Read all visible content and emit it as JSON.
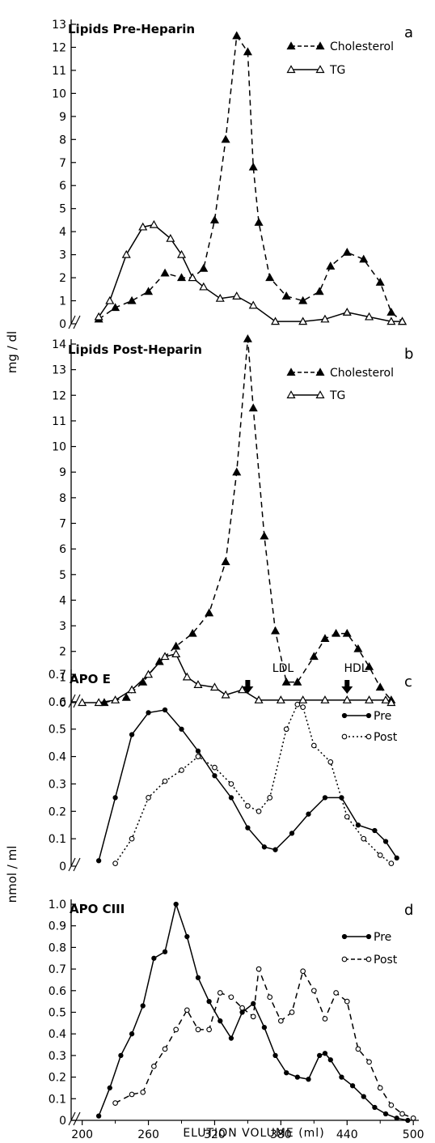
{
  "chart_data": [
    {
      "panel": "a",
      "type": "line",
      "title": "Lipids Pre-Heparin",
      "ylim": [
        0,
        13
      ],
      "yticks": [
        0,
        1,
        2,
        3,
        4,
        5,
        6,
        7,
        8,
        9,
        10,
        11,
        12,
        13
      ],
      "series": [
        {
          "name": "Cholesterol",
          "style": "dashed",
          "marker": "filled-triangle",
          "x": [
            215,
            230,
            245,
            260,
            275,
            290,
            300,
            310,
            320,
            330,
            340,
            350,
            355,
            360,
            370,
            385,
            400,
            415,
            425,
            440,
            455,
            470,
            480,
            490
          ],
          "y": [
            0.2,
            0.7,
            1.0,
            1.4,
            2.2,
            2.0,
            2.0,
            2.4,
            4.5,
            8.0,
            12.5,
            11.8,
            6.8,
            4.4,
            2.0,
            1.2,
            1.0,
            1.4,
            2.5,
            3.1,
            2.8,
            1.8,
            0.5,
            0.1
          ]
        },
        {
          "name": "TG",
          "style": "solid",
          "marker": "open-triangle",
          "x": [
            215,
            225,
            240,
            255,
            265,
            280,
            290,
            300,
            310,
            325,
            340,
            355,
            375,
            400,
            420,
            440,
            460,
            480,
            490
          ],
          "y": [
            0.3,
            1.0,
            3.0,
            4.2,
            4.3,
            3.7,
            3.0,
            2.0,
            1.6,
            1.1,
            1.2,
            0.8,
            0.1,
            0.1,
            0.2,
            0.5,
            0.3,
            0.1,
            0.1
          ]
        }
      ]
    },
    {
      "panel": "b",
      "type": "line",
      "title": "Lipids Post-Heparin",
      "ylim": [
        0,
        14
      ],
      "yticks": [
        0,
        1,
        2,
        3,
        4,
        5,
        6,
        7,
        8,
        9,
        10,
        11,
        12,
        13,
        14
      ],
      "series": [
        {
          "name": "Cholesterol",
          "style": "dashed",
          "marker": "filled-triangle",
          "x": [
            220,
            240,
            255,
            270,
            285,
            300,
            315,
            330,
            340,
            350,
            355,
            365,
            375,
            385,
            395,
            410,
            420,
            430,
            440,
            450,
            460,
            470,
            480
          ],
          "y": [
            0.0,
            0.2,
            0.8,
            1.6,
            2.2,
            2.7,
            3.5,
            5.5,
            9.0,
            14.2,
            11.5,
            6.5,
            2.8,
            0.8,
            0.8,
            1.8,
            2.5,
            2.7,
            2.7,
            2.1,
            1.4,
            0.6,
            0.1
          ]
        },
        {
          "name": "TG",
          "style": "solid",
          "marker": "open-triangle",
          "x": [
            200,
            215,
            230,
            245,
            260,
            275,
            285,
            295,
            305,
            320,
            330,
            345,
            360,
            380,
            400,
            420,
            440,
            460,
            475,
            480
          ],
          "y": [
            0.0,
            0.0,
            0.1,
            0.5,
            1.1,
            1.8,
            1.9,
            1.0,
            0.7,
            0.6,
            0.3,
            0.5,
            0.1,
            0.1,
            0.1,
            0.1,
            0.1,
            0.1,
            0.1,
            0.0
          ]
        }
      ]
    },
    {
      "panel": "c",
      "type": "line",
      "title": "APO E",
      "ylim": [
        0,
        0.7
      ],
      "yticks": [
        "0",
        "0.1",
        "0.2",
        "0.3",
        "0.4",
        "0.5",
        "0.6",
        "0.7"
      ],
      "annotations": [
        {
          "text": "LDL",
          "x": 350
        },
        {
          "text": "HDL",
          "x": 440
        }
      ],
      "series": [
        {
          "name": "Pre",
          "style": "solid",
          "marker": "filled-circle",
          "x": [
            215,
            230,
            245,
            260,
            275,
            290,
            305,
            320,
            335,
            350,
            365,
            375,
            390,
            405,
            420,
            435,
            450,
            465,
            475,
            485
          ],
          "y": [
            0.02,
            0.25,
            0.48,
            0.56,
            0.57,
            0.5,
            0.42,
            0.33,
            0.25,
            0.14,
            0.07,
            0.06,
            0.12,
            0.19,
            0.25,
            0.25,
            0.15,
            0.13,
            0.09,
            0.03
          ]
        },
        {
          "name": "Post",
          "style": "dotted",
          "marker": "open-circle",
          "x": [
            230,
            245,
            260,
            275,
            290,
            305,
            320,
            335,
            350,
            360,
            370,
            385,
            395,
            400,
            410,
            425,
            440,
            455,
            470,
            480
          ],
          "y": [
            0.01,
            0.1,
            0.25,
            0.31,
            0.35,
            0.4,
            0.36,
            0.3,
            0.22,
            0.2,
            0.25,
            0.5,
            0.59,
            0.58,
            0.44,
            0.38,
            0.18,
            0.1,
            0.04,
            0.01
          ]
        }
      ]
    },
    {
      "panel": "d",
      "type": "line",
      "title": "APO CIII",
      "ylim": [
        0,
        1.0
      ],
      "yticks": [
        "0",
        "0.1",
        "0.2",
        "0.3",
        "0.4",
        "0.5",
        "0.6",
        "0.7",
        "0.8",
        "0.9",
        "1.0"
      ],
      "series": [
        {
          "name": "Pre",
          "style": "solid",
          "marker": "filled-circle",
          "x": [
            215,
            225,
            235,
            245,
            255,
            265,
            275,
            285,
            295,
            305,
            315,
            325,
            335,
            345,
            355,
            365,
            375,
            385,
            395,
            405,
            415,
            420,
            425,
            435,
            445,
            455,
            465,
            475,
            485,
            495
          ],
          "y": [
            0.02,
            0.15,
            0.3,
            0.4,
            0.53,
            0.75,
            0.78,
            1.0,
            0.85,
            0.66,
            0.55,
            0.46,
            0.38,
            0.5,
            0.54,
            0.43,
            0.3,
            0.22,
            0.2,
            0.19,
            0.3,
            0.31,
            0.28,
            0.2,
            0.16,
            0.11,
            0.06,
            0.03,
            0.01,
            0.0
          ]
        },
        {
          "name": "Post",
          "style": "dashed",
          "marker": "open-circle",
          "x": [
            230,
            245,
            255,
            265,
            275,
            285,
            295,
            305,
            315,
            325,
            335,
            345,
            355,
            360,
            370,
            380,
            390,
            400,
            410,
            420,
            430,
            440,
            450,
            460,
            470,
            480,
            490,
            500
          ],
          "y": [
            0.08,
            0.12,
            0.13,
            0.25,
            0.33,
            0.42,
            0.51,
            0.42,
            0.42,
            0.59,
            0.57,
            0.52,
            0.48,
            0.7,
            0.57,
            0.46,
            0.5,
            0.69,
            0.6,
            0.47,
            0.59,
            0.55,
            0.33,
            0.27,
            0.15,
            0.07,
            0.03,
            0.01
          ]
        }
      ]
    }
  ],
  "axes": {
    "x_ticks": [
      200,
      260,
      320,
      380,
      440,
      500
    ],
    "xlim": [
      190,
      505
    ],
    "xlabel": "ELUTION VOLUME (ml)",
    "ylabel_top": "mg / dl",
    "ylabel_bottom": "nmol / ml"
  }
}
